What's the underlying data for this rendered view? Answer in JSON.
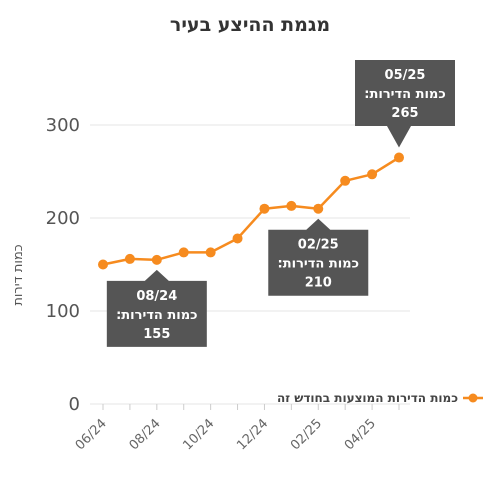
{
  "chart_data": {
    "type": "line",
    "title": "מגמת ההיצע בעיר",
    "ylabel": "כמות דירות",
    "xlabel": "",
    "ylim": [
      0,
      320
    ],
    "yticks": [
      "0",
      "100",
      "200",
      "300"
    ],
    "xtick_labels": [
      "06/24",
      "08/24",
      "10/24",
      "12/24",
      "02/25",
      "04/25"
    ],
    "x": [
      "06/24",
      "07/24",
      "08/24",
      "09/24",
      "10/24",
      "11/24",
      "12/24",
      "01/25",
      "02/25",
      "03/25",
      "04/25",
      "05/25"
    ],
    "series": [
      {
        "name": "כמות הדירות המוצעות בחודש זה",
        "values": [
          150,
          156,
          155,
          163,
          163,
          178,
          210,
          213,
          210,
          240,
          247,
          265
        ]
      }
    ],
    "grid": true,
    "legend_position": "bottom-right",
    "series_color": "#f68b1f",
    "tooltips": [
      {
        "month": "08/24",
        "label": "כמות הדירות:",
        "value": "155"
      },
      {
        "month": "02/25",
        "label": "כמות הדירות:",
        "value": "210"
      },
      {
        "month": "05/25",
        "label": "כמות הדירות:",
        "value": "265"
      }
    ]
  }
}
